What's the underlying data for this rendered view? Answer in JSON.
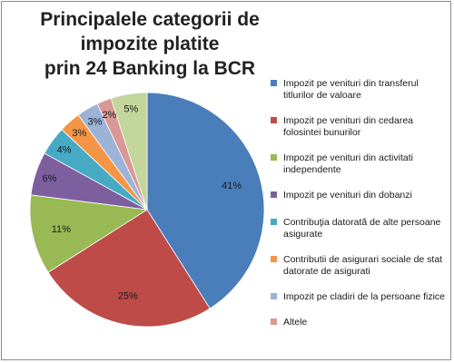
{
  "chart_data": {
    "type": "pie",
    "title_lines": [
      "Principalele categorii de impozite platite",
      "prin 24 Banking la BCR"
    ],
    "slices": [
      {
        "label": "Impozit pe venituri  din transferul titlurilor de valoare",
        "value": 41,
        "value_label": "41%",
        "color": "#4a7ebb"
      },
      {
        "label": "Impozit pe venituri din cedarea folosintei bunurilor",
        "value": 25,
        "value_label": "25%",
        "color": "#be4b48"
      },
      {
        "label": "Impozit pe venituri din activitati independente",
        "value": 11,
        "value_label": "11%",
        "color": "#98b954"
      },
      {
        "label": "Impozit pe venituri din dobanzi",
        "value": 6,
        "value_label": "6%",
        "color": "#7d5fa0"
      },
      {
        "label": "Contribuţia datorată de alte persoane asigurate",
        "value": 4,
        "value_label": "4%",
        "color": "#46aac5"
      },
      {
        "label": "Contributii de asigurari sociale de stat datorate de asigurati",
        "value": 3,
        "value_label": "3%",
        "color": "#f59646"
      },
      {
        "label": "Impozit pe cladiri de la persoane fizice",
        "value": 3,
        "value_label": "3%",
        "color": "#9cb3d8"
      },
      {
        "label": "Altele",
        "value": 2,
        "value_label": "2%",
        "color": "#d99795"
      },
      {
        "label": "",
        "value": 5,
        "value_label": "5%",
        "color": "#c3d69b"
      }
    ],
    "legend_position": "right"
  }
}
